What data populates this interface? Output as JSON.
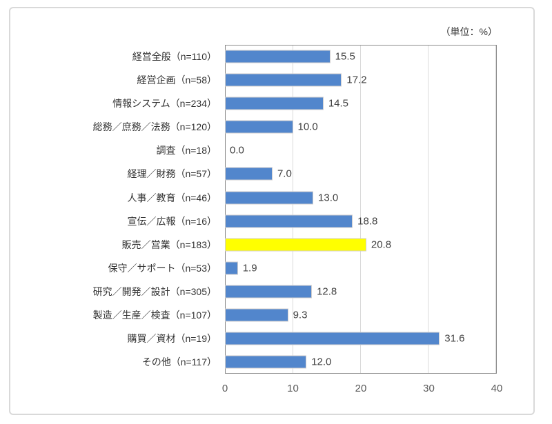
{
  "unit_label": "（単位：%）",
  "colors": {
    "bar_default": "#5286cc",
    "bar_highlight": "#ffff00",
    "bar_border": "#d0cece",
    "plot_border": "#8a8a8a",
    "gridline": "#d9d9d9",
    "frame_border": "#d9d9d9",
    "label_text": "#333333",
    "value_text": "#404040",
    "tick_text": "#595959"
  },
  "chart_data": {
    "type": "bar",
    "orientation": "horizontal",
    "title": "",
    "unit": "（単位：%）",
    "categories": [
      "経営全般（n=110）",
      "経営企画（n=58）",
      "情報システム（n=234）",
      "総務／庶務／法務（n=120）",
      "調査（n=18）",
      "経理／財務（n=57）",
      "人事／教育（n=46）",
      "宣伝／広報（n=16）",
      "販売／営業（n=183）",
      "保守／サポート（n=53）",
      "研究／開発／設計（n=305）",
      "製造／生産／検査（n=107）",
      "購買／資材（n=19）",
      "その他（n=117）"
    ],
    "values": [
      15.5,
      17.2,
      14.5,
      10.0,
      0.0,
      7.0,
      13.0,
      18.8,
      20.8,
      1.9,
      12.8,
      9.3,
      31.6,
      12.0
    ],
    "value_labels": [
      "15.5",
      "17.2",
      "14.5",
      "10.0",
      "0.0",
      "7.0",
      "13.0",
      "18.8",
      "20.8",
      "1.9",
      "12.8",
      "9.3",
      "31.6",
      "12.0"
    ],
    "highlight_index": 8,
    "xlim": [
      0,
      40
    ],
    "xticks": [
      0,
      10,
      20,
      30,
      40
    ],
    "xtick_labels": [
      "0",
      "10",
      "20",
      "30",
      "40"
    ],
    "grid": true,
    "legend": "none",
    "value_label_position": "outside-end"
  }
}
